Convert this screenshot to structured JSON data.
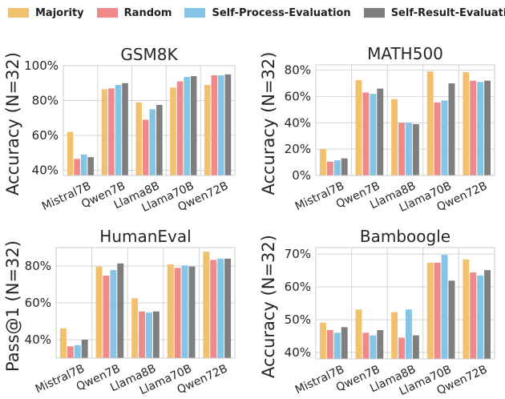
{
  "legend": [
    {
      "name": "Majority",
      "color": "#F2C16E"
    },
    {
      "name": "Random",
      "color": "#F08A8A"
    },
    {
      "name": "Self-Process-Evaluation",
      "color": "#84C4E6"
    },
    {
      "name": "Self-Result-Evaluation",
      "color": "#7F7F7F"
    }
  ],
  "chart_data": [
    {
      "type": "bar",
      "title": "GSM8K",
      "ylabel": "Accuracy (N=32)",
      "ylim": [
        37,
        100
      ],
      "yticks": [
        40,
        60,
        80,
        100
      ],
      "ytick_labels": [
        "40%",
        "60%",
        "80%",
        "100%"
      ],
      "grid": true,
      "categories": [
        "Mistral7B",
        "Qwen7B",
        "Llama8B",
        "Llama70B",
        "Qwen72B"
      ],
      "series": [
        {
          "name": "Majority",
          "values": [
            62,
            86.5,
            79,
            87.5,
            89
          ]
        },
        {
          "name": "Random",
          "values": [
            46.5,
            87,
            69,
            91,
            94.5
          ]
        },
        {
          "name": "Self-Process-Evaluation",
          "values": [
            49,
            89,
            75,
            93.5,
            94.5
          ]
        },
        {
          "name": "Self-Result-Evaluation",
          "values": [
            47.5,
            90,
            77.5,
            94,
            95
          ]
        }
      ]
    },
    {
      "type": "bar",
      "title": "MATH500",
      "ylabel": "Accuracy (N=32)",
      "ylim": [
        0,
        84
      ],
      "yticks": [
        0,
        20,
        40,
        60,
        80
      ],
      "ytick_labels": [
        "0%",
        "20%",
        "40%",
        "60%",
        "80%"
      ],
      "grid": true,
      "categories": [
        "Mistral7B",
        "Qwen7B",
        "Llama8B",
        "Llama70B",
        "Qwen72B"
      ],
      "series": [
        {
          "name": "Majority",
          "values": [
            20,
            72.5,
            58,
            79,
            78.5
          ]
        },
        {
          "name": "Random",
          "values": [
            10.5,
            63,
            40,
            55.5,
            72
          ]
        },
        {
          "name": "Self-Process-Evaluation",
          "values": [
            11.5,
            62,
            40,
            57,
            71
          ]
        },
        {
          "name": "Self-Result-Evaluation",
          "values": [
            13,
            66,
            39,
            70,
            72
          ]
        }
      ]
    },
    {
      "type": "bar",
      "title": "HumanEval",
      "ylabel": "Pass@1 (N=32)",
      "ylim": [
        30,
        90
      ],
      "yticks": [
        40,
        60,
        80
      ],
      "ytick_labels": [
        "40%",
        "60%",
        "80%"
      ],
      "grid": true,
      "categories": [
        "Mistral7B",
        "Qwen7B",
        "Llama8B",
        "Llama70B",
        "Qwen72B"
      ],
      "series": [
        {
          "name": "Majority",
          "values": [
            46.2,
            79.7,
            62.5,
            80.9,
            87.8
          ]
        },
        {
          "name": "Random",
          "values": [
            36.4,
            74.8,
            55.3,
            79,
            83.3
          ]
        },
        {
          "name": "Self-Process-Evaluation",
          "values": [
            37,
            77.8,
            54.7,
            80.3,
            84
          ]
        },
        {
          "name": "Self-Result-Evaluation",
          "values": [
            40,
            81.4,
            55.3,
            79.7,
            84
          ]
        }
      ]
    },
    {
      "type": "bar",
      "title": "Bamboogle",
      "ylabel": "Accuracy (N=32)",
      "ylim": [
        38,
        72
      ],
      "yticks": [
        40,
        50,
        60,
        70
      ],
      "ytick_labels": [
        "40%",
        "50%",
        "60%",
        "70%"
      ],
      "grid": true,
      "categories": [
        "Mistral7B",
        "Qwen7B",
        "Llama8B",
        "Llama70B",
        "Qwen72B"
      ],
      "series": [
        {
          "name": "Majority",
          "values": [
            49.1,
            53.1,
            52.3,
            67.4,
            68.4
          ]
        },
        {
          "name": "Random",
          "values": [
            46.8,
            46,
            44.5,
            67.4,
            64.4
          ]
        },
        {
          "name": "Self-Process-Evaluation",
          "values": [
            46,
            45.2,
            53.1,
            69.8,
            63.5
          ]
        },
        {
          "name": "Self-Result-Evaluation",
          "values": [
            47.7,
            46.8,
            45.2,
            61.9,
            65.1
          ]
        }
      ]
    }
  ]
}
